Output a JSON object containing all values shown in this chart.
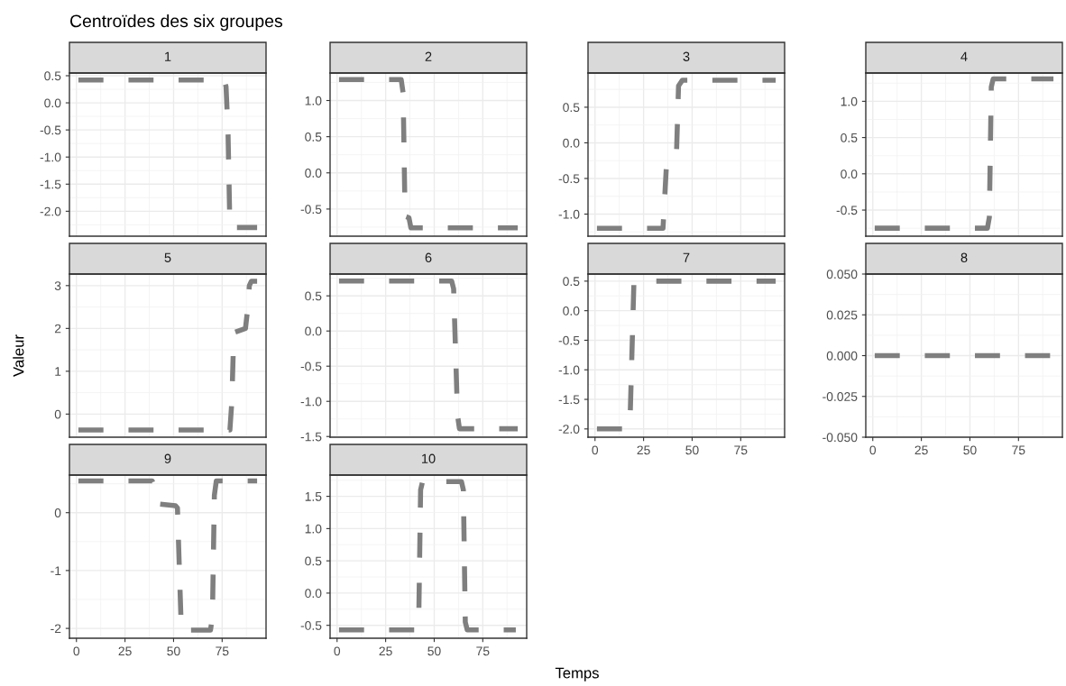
{
  "chart_data": [
    {
      "type": "line",
      "title": "1",
      "annotations": [
        "Centroïdes des six groupes"
      ],
      "x": [
        1,
        76,
        77,
        78,
        79,
        93
      ],
      "series": [
        {
          "color": "#7f7f7f",
          "values": [
            0.42,
            0.42,
            0.3,
            -0.5,
            -2.3,
            -2.3
          ]
        }
      ],
      "xlim": [
        -3.6,
        97.6
      ],
      "xticks": [
        0,
        25,
        50,
        75
      ],
      "ylim": [
        -2.46,
        0.55
      ],
      "yticks": [
        {
          "value": -2,
          "label": "-2.0"
        },
        -1.5,
        {
          "value": -1,
          "label": "-1.0"
        },
        -0.5,
        {
          "value": 0,
          "label": "0.0"
        },
        0.5
      ],
      "tick_labels": "y",
      "grid": true,
      "line_style": "dashed"
    },
    {
      "type": "line",
      "title": "2",
      "x": [
        1,
        33,
        34,
        35,
        37,
        38,
        93
      ],
      "series": [
        {
          "color": "#7f7f7f",
          "values": [
            1.29,
            1.29,
            1.1,
            -0.6,
            -0.62,
            -0.76,
            -0.76
          ]
        }
      ],
      "xlim": [
        -3.6,
        97.6
      ],
      "xticks": [
        0,
        25,
        50,
        75
      ],
      "ylim": [
        -0.875,
        1.38
      ],
      "yticks": [
        -0.5,
        {
          "value": 0,
          "label": "0.0"
        },
        0.5,
        {
          "value": 1,
          "label": "1.0"
        }
      ],
      "tick_labels": "y",
      "grid": true,
      "line_style": "dashed"
    },
    {
      "type": "line",
      "title": "3",
      "x": [
        1,
        35,
        37,
        42,
        43,
        45,
        93
      ],
      "series": [
        {
          "color": "#7f7f7f",
          "values": [
            -1.2,
            -1.2,
            -0.2,
            -0.1,
            0.8,
            0.88,
            0.88
          ]
        }
      ],
      "xlim": [
        -3.6,
        97.6
      ],
      "xticks": [
        0,
        25,
        50,
        75
      ],
      "ylim": [
        -1.31,
        0.98
      ],
      "yticks": [
        {
          "value": -1,
          "label": "-1.0"
        },
        -0.5,
        {
          "value": 0,
          "label": "0.0"
        },
        0.5
      ],
      "tick_labels": "y",
      "grid": true,
      "line_style": "dashed"
    },
    {
      "type": "line",
      "title": "4",
      "x": [
        1,
        59,
        60,
        61,
        62,
        93
      ],
      "series": [
        {
          "color": "#7f7f7f",
          "values": [
            -0.75,
            -0.75,
            -0.6,
            1.2,
            1.31,
            1.31
          ]
        }
      ],
      "xlim": [
        -3.6,
        97.6
      ],
      "xticks": [
        0,
        25,
        50,
        75
      ],
      "ylim": [
        -0.86,
        1.39
      ],
      "yticks": [
        -0.5,
        {
          "value": 0,
          "label": "0.0"
        },
        0.5,
        {
          "value": 1,
          "label": "1.0"
        }
      ],
      "tick_labels": "y",
      "grid": true,
      "line_style": "dashed"
    },
    {
      "type": "line",
      "title": "5",
      "ylabel": "Valeur",
      "x": [
        1,
        79,
        80,
        81,
        87,
        88,
        89,
        90,
        93
      ],
      "series": [
        {
          "color": "#7f7f7f",
          "values": [
            -0.37,
            -0.37,
            0.3,
            1.9,
            2.0,
            2.4,
            3.0,
            3.1,
            3.1
          ]
        }
      ],
      "xlim": [
        -3.6,
        97.6
      ],
      "xticks": [
        0,
        25,
        50,
        75
      ],
      "ylim": [
        -0.54,
        3.27
      ],
      "yticks": [
        0,
        1,
        2,
        3
      ],
      "tick_labels": "y",
      "grid": true,
      "line_style": "dashed"
    },
    {
      "type": "line",
      "title": "6",
      "x": [
        1,
        59,
        60,
        62,
        63,
        93
      ],
      "series": [
        {
          "color": "#7f7f7f",
          "values": [
            0.71,
            0.71,
            0.6,
            -1.2,
            -1.39,
            -1.39
          ]
        }
      ],
      "xlim": [
        -3.6,
        97.6
      ],
      "xticks": [
        0,
        25,
        50,
        75
      ],
      "ylim": [
        -1.51,
        0.81
      ],
      "yticks": [
        -1.5,
        {
          "value": -1,
          "label": "-1.0"
        },
        -0.5,
        {
          "value": 0,
          "label": "0.0"
        },
        0.5
      ],
      "tick_labels": "y",
      "grid": true,
      "line_style": "dashed"
    },
    {
      "type": "line",
      "title": "7",
      "x": [
        1,
        17,
        18,
        20,
        21,
        93
      ],
      "series": [
        {
          "color": "#7f7f7f",
          "values": [
            -2.0,
            -2.0,
            -1.9,
            0.45,
            0.5,
            0.5
          ]
        }
      ],
      "xlim": [
        -3.6,
        97.6
      ],
      "xticks": [
        0,
        25,
        50,
        75
      ],
      "ylim": [
        -2.14,
        0.62
      ],
      "yticks": [
        {
          "value": -2,
          "label": "-2.0"
        },
        -1.5,
        {
          "value": -1,
          "label": "-1.0"
        },
        -0.5,
        {
          "value": 0,
          "label": "0.0"
        },
        0.5
      ],
      "grid": true,
      "line_style": "dashed"
    },
    {
      "type": "line",
      "title": "8",
      "x": [
        1,
        93
      ],
      "series": [
        {
          "color": "#7f7f7f",
          "values": [
            0,
            0
          ]
        }
      ],
      "xlim": [
        -3.6,
        97.6
      ],
      "xticks": [
        0,
        25,
        50,
        75
      ],
      "ylim": [
        -0.05,
        0.05
      ],
      "yticks": [
        {
          "value": -0.05,
          "label": "-0.050"
        },
        {
          "value": -0.025,
          "label": "-0.025"
        },
        {
          "value": 0,
          "label": "0.000"
        },
        {
          "value": 0.025,
          "label": "0.025"
        },
        {
          "value": 0.05,
          "label": "0.050"
        }
      ],
      "grid": true,
      "line_style": "dashed"
    },
    {
      "type": "line",
      "title": "9",
      "x": [
        1,
        39,
        40,
        41,
        42,
        51,
        52,
        53,
        54,
        69,
        70,
        71,
        72,
        93
      ],
      "series": [
        {
          "color": "#7f7f7f",
          "values": [
            0.55,
            0.55,
            0.45,
            0.2,
            0.15,
            0.12,
            0.08,
            -1.0,
            -2.03,
            -2.03,
            -1.8,
            0.3,
            0.55,
            0.55
          ]
        }
      ],
      "xlim": [
        -3.6,
        97.6
      ],
      "xticks": [
        0,
        25,
        50,
        75
      ],
      "ylim": [
        -2.17,
        0.65
      ],
      "yticks": [
        -2,
        -1,
        0
      ],
      "grid": true,
      "line_style": "dashed"
    },
    {
      "type": "line",
      "title": "10",
      "xlabel": "Temps",
      "x": [
        1,
        41,
        42,
        43,
        44,
        64,
        65,
        66,
        67,
        92
      ],
      "series": [
        {
          "color": "#7f7f7f",
          "values": [
            -0.57,
            -0.57,
            -0.5,
            1.6,
            1.73,
            1.73,
            1.6,
            -0.45,
            -0.57,
            -0.57
          ]
        }
      ],
      "xlim": [
        -3.6,
        97.6
      ],
      "xticks": [
        0,
        25,
        50,
        75
      ],
      "ylim": [
        -0.7,
        1.83
      ],
      "yticks": [
        -0.5,
        {
          "value": 0,
          "label": "0.0"
        },
        0.5,
        {
          "value": 1,
          "label": "1.0"
        },
        1.5
      ],
      "grid": true,
      "line_style": "dashed"
    }
  ]
}
